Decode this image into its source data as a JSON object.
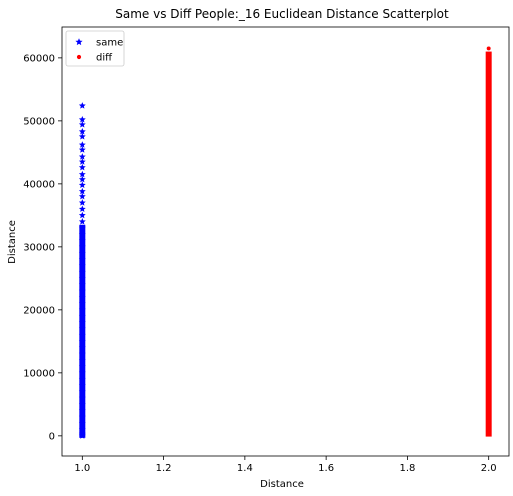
{
  "chart_data": {
    "type": "scatter",
    "title": "Same vs Diff People:_16 Euclidean Distance Scatterplot",
    "xlabel": "Distance",
    "ylabel": "Distance",
    "xlim": [
      0.95,
      2.05
    ],
    "ylim": [
      -3200,
      64900
    ],
    "x_ticks": [
      1.0,
      1.2,
      1.4,
      1.6,
      1.8,
      2.0
    ],
    "x_tick_labels": [
      "1.0",
      "1.2",
      "1.4",
      "1.6",
      "1.8",
      "2.0"
    ],
    "y_ticks": [
      0,
      10000,
      20000,
      30000,
      40000,
      50000,
      60000
    ],
    "y_tick_labels": [
      "0",
      "10000",
      "20000",
      "30000",
      "40000",
      "50000",
      "60000"
    ],
    "grid": false,
    "legend_position": "top-left",
    "series": [
      {
        "name": "same",
        "color": "#0000ff",
        "marker": "star",
        "points": [
          [
            1.0,
            52400
          ],
          [
            1.0,
            50200
          ],
          [
            1.0,
            49400
          ],
          [
            1.0,
            48300
          ],
          [
            1.0,
            47500
          ],
          [
            1.0,
            46200
          ],
          [
            1.0,
            45400
          ],
          [
            1.0,
            44300
          ],
          [
            1.0,
            43500
          ],
          [
            1.0,
            42600
          ],
          [
            1.0,
            41500
          ],
          [
            1.0,
            40700
          ],
          [
            1.0,
            39800
          ],
          [
            1.0,
            38800
          ],
          [
            1.0,
            38000
          ],
          [
            1.0,
            37000
          ],
          [
            1.0,
            36000
          ],
          [
            1.0,
            35000
          ],
          [
            1.0,
            34000
          ],
          [
            1.0,
            33000
          ],
          [
            1.0,
            32000
          ],
          [
            1.0,
            31000
          ],
          [
            1.0,
            30000
          ],
          [
            1.0,
            29000
          ],
          [
            1.0,
            28000
          ],
          [
            1.0,
            27000
          ],
          [
            1.0,
            26000
          ],
          [
            1.0,
            25000
          ],
          [
            1.0,
            24000
          ],
          [
            1.0,
            23000
          ],
          [
            1.0,
            22000
          ],
          [
            1.0,
            21000
          ],
          [
            1.0,
            20000
          ],
          [
            1.0,
            19000
          ],
          [
            1.0,
            18000
          ],
          [
            1.0,
            17000
          ],
          [
            1.0,
            16000
          ],
          [
            1.0,
            15000
          ],
          [
            1.0,
            14000
          ],
          [
            1.0,
            13000
          ],
          [
            1.0,
            12000
          ],
          [
            1.0,
            11000
          ],
          [
            1.0,
            10000
          ],
          [
            1.0,
            9000
          ],
          [
            1.0,
            8000
          ],
          [
            1.0,
            7000
          ],
          [
            1.0,
            6000
          ],
          [
            1.0,
            5000
          ],
          [
            1.0,
            4000
          ],
          [
            1.0,
            3000
          ],
          [
            1.0,
            2000
          ],
          [
            1.0,
            1000
          ],
          [
            1.0,
            300
          ],
          [
            1.0,
            0
          ]
        ]
      },
      {
        "name": "diff",
        "color": "#ff0000",
        "marker": "dot",
        "points": [
          [
            2.0,
            61500
          ],
          [
            2.0,
            60500
          ],
          [
            2.0,
            59500
          ],
          [
            2.0,
            58500
          ],
          [
            2.0,
            57500
          ],
          [
            2.0,
            56500
          ],
          [
            2.0,
            55500
          ],
          [
            2.0,
            54500
          ],
          [
            2.0,
            53500
          ],
          [
            2.0,
            52500
          ],
          [
            2.0,
            51500
          ],
          [
            2.0,
            51000
          ],
          [
            2.0,
            49400
          ],
          [
            2.0,
            48500
          ],
          [
            2.0,
            47500
          ],
          [
            2.0,
            46500
          ],
          [
            2.0,
            45500
          ],
          [
            2.0,
            44500
          ],
          [
            2.0,
            43500
          ],
          [
            2.0,
            42500
          ],
          [
            2.0,
            41500
          ],
          [
            2.0,
            40500
          ],
          [
            2.0,
            39500
          ],
          [
            2.0,
            38500
          ],
          [
            2.0,
            37500
          ],
          [
            2.0,
            36500
          ],
          [
            2.0,
            35500
          ],
          [
            2.0,
            34500
          ],
          [
            2.0,
            33500
          ],
          [
            2.0,
            32500
          ],
          [
            2.0,
            31500
          ],
          [
            2.0,
            30500
          ],
          [
            2.0,
            29500
          ],
          [
            2.0,
            28500
          ],
          [
            2.0,
            27500
          ],
          [
            2.0,
            26500
          ],
          [
            2.0,
            25500
          ],
          [
            2.0,
            24500
          ],
          [
            2.0,
            23500
          ],
          [
            2.0,
            22500
          ],
          [
            2.0,
            21500
          ],
          [
            2.0,
            20500
          ],
          [
            2.0,
            19500
          ],
          [
            2.0,
            18500
          ],
          [
            2.0,
            17500
          ],
          [
            2.0,
            16500
          ],
          [
            2.0,
            15500
          ],
          [
            2.0,
            14500
          ],
          [
            2.0,
            13500
          ],
          [
            2.0,
            12500
          ],
          [
            2.0,
            11500
          ],
          [
            2.0,
            10500
          ],
          [
            2.0,
            9500
          ],
          [
            2.0,
            8500
          ],
          [
            2.0,
            7500
          ],
          [
            2.0,
            6500
          ],
          [
            2.0,
            5500
          ],
          [
            2.0,
            4500
          ],
          [
            2.0,
            3500
          ],
          [
            2.0,
            2500
          ],
          [
            2.0,
            1500
          ],
          [
            2.0,
            600
          ],
          [
            2.0,
            200
          ]
        ]
      }
    ]
  }
}
